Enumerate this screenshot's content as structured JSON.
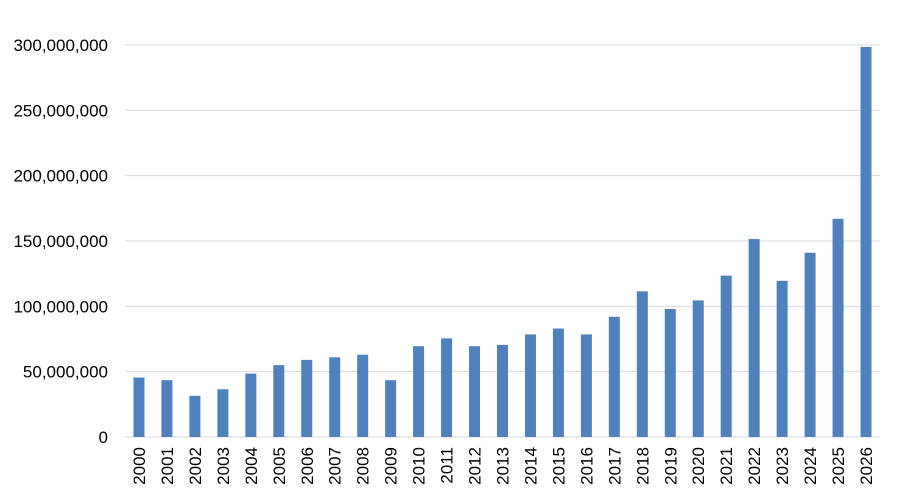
{
  "chart_data": {
    "type": "bar",
    "categories": [
      "2000",
      "2001",
      "2002",
      "2003",
      "2004",
      "2005",
      "2006",
      "2007",
      "2008",
      "2009",
      "2010",
      "2011",
      "2012",
      "2013",
      "2014",
      "2015",
      "2016",
      "2017",
      "2018",
      "2019",
      "2020",
      "2021",
      "2022",
      "2023",
      "2024",
      "2025",
      "2026"
    ],
    "values": [
      45500000,
      43500000,
      31500000,
      36500000,
      48500000,
      55000000,
      59000000,
      61000000,
      63000000,
      43500000,
      69500000,
      75500000,
      69500000,
      70500000,
      78500000,
      83000000,
      78500000,
      92000000,
      111500000,
      98000000,
      104500000,
      123500000,
      151500000,
      119500000,
      141000000,
      167000000,
      298500000
    ],
    "title": "",
    "xlabel": "",
    "ylabel": "",
    "ylim": [
      0,
      300000000
    ],
    "yticks": [
      "0",
      "50,000,000",
      "100,000,000",
      "150,000,000",
      "200,000,000",
      "250,000,000",
      "300,000,000"
    ],
    "grid": true,
    "bar_color": "#4F81BD",
    "grid_color": "#D9D9D9"
  }
}
